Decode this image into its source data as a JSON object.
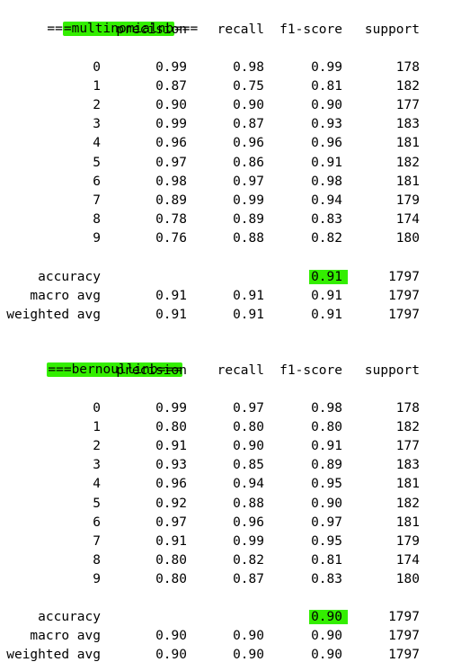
{
  "reports": [
    {
      "prefix": "==",
      "name": "=multinomialnb",
      "suffix": "===",
      "headers": [
        "precision",
        "recall",
        "f1-score",
        "support"
      ],
      "rows": [
        {
          "label": "0",
          "precision": "0.99",
          "recall": "0.98",
          "f1": "0.99",
          "support": "178"
        },
        {
          "label": "1",
          "precision": "0.87",
          "recall": "0.75",
          "f1": "0.81",
          "support": "182"
        },
        {
          "label": "2",
          "precision": "0.90",
          "recall": "0.90",
          "f1": "0.90",
          "support": "177"
        },
        {
          "label": "3",
          "precision": "0.99",
          "recall": "0.87",
          "f1": "0.93",
          "support": "183"
        },
        {
          "label": "4",
          "precision": "0.96",
          "recall": "0.96",
          "f1": "0.96",
          "support": "181"
        },
        {
          "label": "5",
          "precision": "0.97",
          "recall": "0.86",
          "f1": "0.91",
          "support": "182"
        },
        {
          "label": "6",
          "precision": "0.98",
          "recall": "0.97",
          "f1": "0.98",
          "support": "181"
        },
        {
          "label": "7",
          "precision": "0.89",
          "recall": "0.99",
          "f1": "0.94",
          "support": "179"
        },
        {
          "label": "8",
          "precision": "0.78",
          "recall": "0.89",
          "f1": "0.83",
          "support": "174"
        },
        {
          "label": "9",
          "precision": "0.76",
          "recall": "0.88",
          "f1": "0.82",
          "support": "180"
        }
      ],
      "summary": [
        {
          "label": "accuracy",
          "precision": "",
          "recall": "",
          "f1": "0.91",
          "support": "1797",
          "highlight": true
        },
        {
          "label": "macro avg",
          "precision": "0.91",
          "recall": "0.91",
          "f1": "0.91",
          "support": "1797"
        },
        {
          "label": "weighted avg",
          "precision": "0.91",
          "recall": "0.91",
          "f1": "0.91",
          "support": "1797"
        }
      ]
    },
    {
      "prefix": "",
      "name": "===bernoullinb===",
      "suffix": "",
      "headers": [
        "precision",
        "recall",
        "f1-score",
        "support"
      ],
      "rows": [
        {
          "label": "0",
          "precision": "0.99",
          "recall": "0.97",
          "f1": "0.98",
          "support": "178"
        },
        {
          "label": "1",
          "precision": "0.80",
          "recall": "0.80",
          "f1": "0.80",
          "support": "182"
        },
        {
          "label": "2",
          "precision": "0.91",
          "recall": "0.90",
          "f1": "0.91",
          "support": "177"
        },
        {
          "label": "3",
          "precision": "0.93",
          "recall": "0.85",
          "f1": "0.89",
          "support": "183"
        },
        {
          "label": "4",
          "precision": "0.96",
          "recall": "0.94",
          "f1": "0.95",
          "support": "181"
        },
        {
          "label": "5",
          "precision": "0.92",
          "recall": "0.88",
          "f1": "0.90",
          "support": "182"
        },
        {
          "label": "6",
          "precision": "0.97",
          "recall": "0.96",
          "f1": "0.97",
          "support": "181"
        },
        {
          "label": "7",
          "precision": "0.91",
          "recall": "0.99",
          "f1": "0.95",
          "support": "179"
        },
        {
          "label": "8",
          "precision": "0.80",
          "recall": "0.82",
          "f1": "0.81",
          "support": "174"
        },
        {
          "label": "9",
          "precision": "0.80",
          "recall": "0.87",
          "f1": "0.83",
          "support": "180"
        }
      ],
      "summary": [
        {
          "label": "accuracy",
          "precision": "",
          "recall": "",
          "f1": "0.90",
          "support": "1797",
          "highlight": true
        },
        {
          "label": "macro avg",
          "precision": "0.90",
          "recall": "0.90",
          "f1": "0.90",
          "support": "1797"
        },
        {
          "label": "weighted avg",
          "precision": "0.90",
          "recall": "0.90",
          "f1": "0.90",
          "support": "1797"
        }
      ]
    }
  ],
  "colors": {
    "highlight": "#33ee00",
    "text": "#000000",
    "background": "#ffffff"
  }
}
